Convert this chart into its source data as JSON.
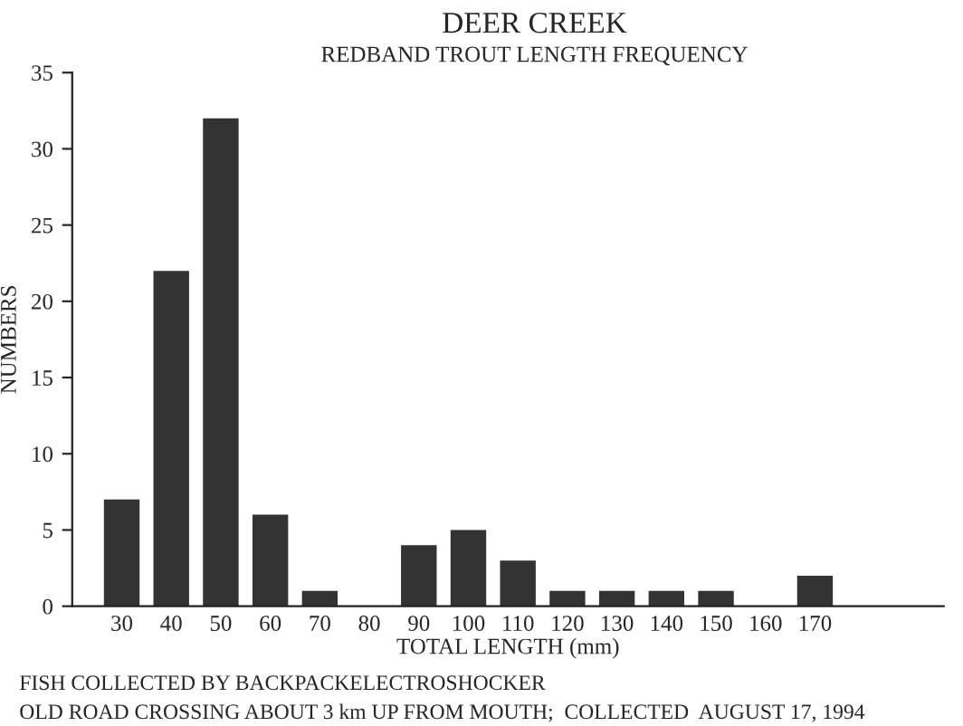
{
  "chart_data": {
    "type": "bar",
    "title": "DEER CREEK",
    "subtitle": "REDBAND TROUT LENGTH FREQUENCY",
    "xlabel": "TOTAL LENGTH (mm)",
    "ylabel": "NUMBERS",
    "categories": [
      "30",
      "40",
      "50",
      "60",
      "70",
      "80",
      "90",
      "100",
      "110",
      "120",
      "130",
      "140",
      "150",
      "160",
      "170"
    ],
    "values": [
      7,
      22,
      32,
      6,
      1,
      0,
      4,
      5,
      3,
      1,
      1,
      1,
      1,
      0,
      2
    ],
    "color": "#333333",
    "ylim": [
      0,
      35
    ],
    "yticks": [
      0,
      5,
      10,
      15,
      20,
      25,
      30,
      35
    ],
    "grid": false,
    "annotations": [
      "FISH COLLECTED BY BACKPACKELECTROSHOCKER",
      "OLD ROAD CROSSING ABOUT 3 km UP FROM MOUTH;  COLLECTED  AUGUST 17, 1994"
    ]
  }
}
